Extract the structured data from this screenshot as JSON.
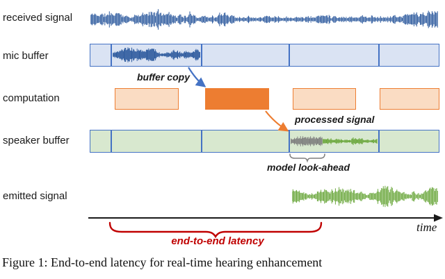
{
  "rows": {
    "received": {
      "label": "received signal"
    },
    "mic": {
      "label": "mic buffer"
    },
    "computation": {
      "label": "computation"
    },
    "speaker": {
      "label": "speaker buffer"
    },
    "emitted": {
      "label": "emitted signal"
    }
  },
  "annotations": {
    "buffer_copy": "buffer copy",
    "processed_signal": "processed signal",
    "model_lookahead": "model look-ahead",
    "end_to_end_latency": "end-to-end latency",
    "time_axis": "time"
  },
  "caption": "Figure 1: End-to-end latency for real-time hearing enhancement",
  "colors": {
    "signal_blue": "#2e5b9e",
    "buffer_blue_border": "#4472c4",
    "buffer_blue_fill": "#dae3f3",
    "computation_orange": "#ed7d31",
    "computation_orange_fill": "#fadcc3",
    "speaker_green_fill": "#d8e8cf",
    "signal_green": "#6ca83e",
    "lookahead_gray": "#7f7f7f",
    "latency_red": "#c00000",
    "axis_black": "#1a1a1a"
  }
}
